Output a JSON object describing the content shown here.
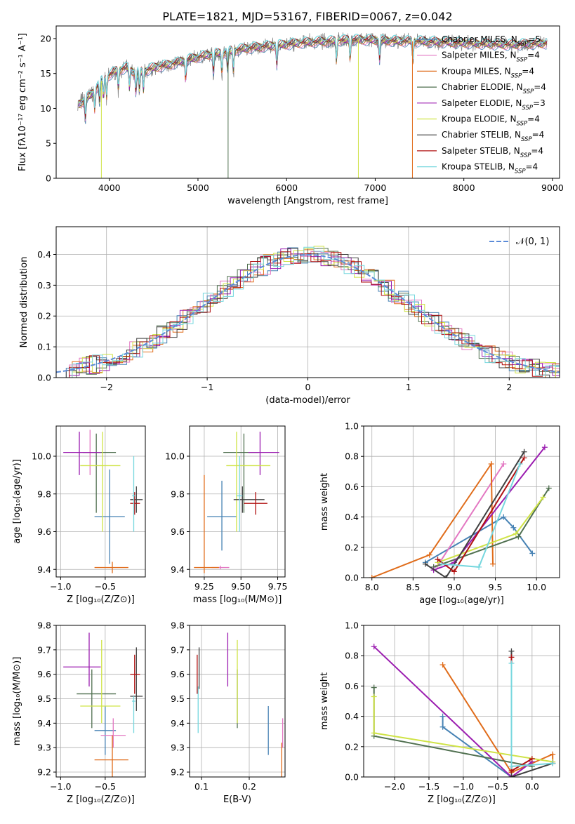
{
  "figure": {
    "title": "PLATE=1821, MJD=53167, FIBERID=0067, z=0.042"
  },
  "models": [
    {
      "name": "Chabrier MILES",
      "nssp": "5",
      "color": "#4682b4"
    },
    {
      "name": "Salpeter MILES",
      "nssp": "4",
      "color": "#e377c2"
    },
    {
      "name": "Kroupa MILES",
      "nssp": "4",
      "color": "#e06c1a"
    },
    {
      "name": "Chabrier ELODIE",
      "nssp": "4",
      "color": "#507050"
    },
    {
      "name": "Salpeter ELODIE",
      "nssp": "3",
      "color": "#9b1db0"
    },
    {
      "name": "Kroupa ELODIE",
      "nssp": "4",
      "color": "#cfe346"
    },
    {
      "name": "Chabrier STELIB",
      "nssp": "4",
      "color": "#404040"
    },
    {
      "name": "Salpeter STELIB",
      "nssp": "4",
      "color": "#b01010"
    },
    {
      "name": "Kroupa STELIB",
      "nssp": "4",
      "color": "#76d7de"
    }
  ],
  "chart_data": [
    {
      "id": "spectrum",
      "type": "line",
      "xlabel": "wavelength [Angstrom, rest frame]",
      "ylabel": "Flux [fλ10⁻¹⁷ erg cm⁻² s⁻¹ A⁻¹]",
      "xlim": [
        3400,
        9080
      ],
      "ylim": [
        0,
        21.8
      ],
      "xticks": [
        4000,
        5000,
        6000,
        7000,
        8000,
        9000
      ],
      "yticks": [
        0,
        5,
        10,
        15,
        20
      ],
      "data_color": "#808080",
      "continuum": {
        "x": [
          3650,
          3700,
          3800,
          3900,
          4000,
          4100,
          4200,
          4300,
          4500,
          4700,
          4900,
          5100,
          5300,
          5500,
          5700,
          5900,
          6100,
          6300,
          6500,
          6700,
          6900,
          7100,
          7300,
          7500,
          7700,
          7900,
          8100,
          8300,
          8500,
          8700,
          8900
        ],
        "y": [
          10.5,
          11.0,
          12.0,
          13.8,
          14.8,
          15.5,
          15.8,
          15.0,
          15.8,
          16.3,
          17.0,
          17.6,
          18.0,
          18.5,
          18.8,
          19.0,
          19.3,
          19.5,
          19.6,
          19.8,
          19.8,
          19.7,
          19.6,
          19.6,
          19.5,
          19.4,
          19.3,
          19.2,
          19.1,
          19.2,
          19.3
        ]
      },
      "absorption_lines": [
        3730,
        3835,
        3890,
        3934,
        3969,
        4102,
        4227,
        4300,
        4340,
        4384,
        4861,
        5175,
        5270,
        5335,
        5400,
        5890,
        6563,
        6717,
        7050,
        7425
      ],
      "spikes": [
        {
          "x": 5340,
          "y": 0,
          "model": "Chabrier ELODIE"
        },
        {
          "x": 6810,
          "y": 0,
          "model": "Kroupa ELODIE"
        },
        {
          "x": 7420,
          "y": 0,
          "model": "Kroupa MILES"
        },
        {
          "x": 3910,
          "y": 0,
          "model": "Kroupa ELODIE"
        }
      ]
    },
    {
      "id": "residuals",
      "type": "step",
      "xlabel": "(data-model)/error",
      "ylabel": "Normed distribution",
      "xlim": [
        -2.5,
        2.5
      ],
      "ylim": [
        0,
        0.49
      ],
      "xticks": [
        -2,
        -1,
        0,
        1,
        2
      ],
      "yticks": [
        0.0,
        0.1,
        0.2,
        0.3,
        0.4
      ],
      "gaussian_label": "𝒩(0, 1)",
      "gaussian_color": "#5b8bd8"
    },
    {
      "id": "age_vs_z",
      "type": "errorbar",
      "xlabel": "Z [log₁₀(Z/Z⊙)]",
      "ylabel": "age  [log₁₀(age/yr)]",
      "xlim": [
        -1.05,
        -0.05
      ],
      "ylim": [
        9.36,
        10.16
      ],
      "xticks": [
        -1.0,
        -0.5
      ],
      "yticks": [
        9.4,
        9.6,
        9.8,
        10.0
      ],
      "points": [
        {
          "model": "Chabrier MILES",
          "x": -0.45,
          "y": 9.68,
          "xl": -0.62,
          "xh": -0.28,
          "yl": 9.43,
          "yh": 9.93
        },
        {
          "model": "Salpeter MILES",
          "x": -0.67,
          "y": 10.02,
          "xl": -0.82,
          "xh": -0.52,
          "yl": 9.9,
          "yh": 10.14
        },
        {
          "model": "Kroupa MILES",
          "x": -0.42,
          "y": 9.41,
          "xl": -0.62,
          "xh": -0.24,
          "yl": 9.38,
          "yh": 9.44
        },
        {
          "model": "Chabrier ELODIE",
          "x": -0.6,
          "y": 10.02,
          "xl": -0.75,
          "xh": -0.38,
          "yl": 9.7,
          "yh": 10.12
        },
        {
          "model": "Salpeter ELODIE",
          "x": -0.79,
          "y": 10.02,
          "xl": -0.97,
          "xh": -0.55,
          "yl": 9.9,
          "yh": 10.13
        },
        {
          "model": "Kroupa ELODIE",
          "x": -0.53,
          "y": 9.95,
          "xl": -0.78,
          "xh": -0.33,
          "yl": 9.6,
          "yh": 10.13
        },
        {
          "model": "Chabrier STELIB",
          "x": -0.15,
          "y": 9.77,
          "xl": -0.22,
          "xh": -0.08,
          "yl": 9.7,
          "yh": 9.84
        },
        {
          "model": "Salpeter STELIB",
          "x": -0.17,
          "y": 9.75,
          "xl": -0.22,
          "xh": -0.11,
          "yl": 9.69,
          "yh": 9.81
        },
        {
          "model": "Kroupa STELIB",
          "x": -0.18,
          "y": 9.79,
          "xl": -0.2,
          "xh": -0.16,
          "yl": 9.6,
          "yh": 10.0
        }
      ]
    },
    {
      "id": "age_vs_mass",
      "type": "errorbar",
      "xlabel": "mass [log₁₀(M/M⊙)]",
      "ylabel": "",
      "xlim": [
        9.15,
        9.8
      ],
      "ylim": [
        9.36,
        10.16
      ],
      "xticks": [
        9.25,
        9.5,
        9.75
      ],
      "yticks": [
        9.4,
        9.6,
        9.8,
        10.0
      ],
      "points": [
        {
          "model": "Chabrier MILES",
          "x": 9.37,
          "y": 9.68,
          "xl": 9.27,
          "xh": 9.47,
          "yl": 9.5,
          "yh": 9.87
        },
        {
          "model": "Salpeter MILES",
          "x": 9.36,
          "y": 9.41,
          "xl": 9.3,
          "xh": 9.42,
          "yl": 9.4,
          "yh": 9.42
        },
        {
          "model": "Kroupa MILES",
          "x": 9.25,
          "y": 9.41,
          "xl": 9.18,
          "xh": 9.35,
          "yl": 9.38,
          "yh": 9.9
        },
        {
          "model": "Chabrier ELODIE",
          "x": 9.52,
          "y": 10.02,
          "xl": 9.38,
          "xh": 9.62,
          "yl": 9.7,
          "yh": 10.12
        },
        {
          "model": "Salpeter ELODIE",
          "x": 9.63,
          "y": 10.02,
          "xl": 9.55,
          "xh": 9.76,
          "yl": 9.9,
          "yh": 10.13
        },
        {
          "model": "Kroupa ELODIE",
          "x": 9.47,
          "y": 9.95,
          "xl": 9.4,
          "xh": 9.7,
          "yl": 9.6,
          "yh": 10.13
        },
        {
          "model": "Chabrier STELIB",
          "x": 9.51,
          "y": 9.77,
          "xl": 9.45,
          "xh": 9.66,
          "yl": 9.7,
          "yh": 9.84
        },
        {
          "model": "Salpeter STELIB",
          "x": 9.6,
          "y": 9.75,
          "xl": 9.52,
          "xh": 9.68,
          "yl": 9.69,
          "yh": 9.81
        },
        {
          "model": "Kroupa STELIB",
          "x": 9.49,
          "y": 9.79,
          "xl": 9.47,
          "xh": 9.51,
          "yl": 9.6,
          "yh": 10.0
        }
      ]
    },
    {
      "id": "weight_vs_age",
      "type": "line",
      "xlabel": "age  [log₁₀(age/yr)]",
      "ylabel": "mass weight",
      "xlim": [
        7.9,
        10.28
      ],
      "ylim": [
        0,
        1
      ],
      "xticks": [
        8.0,
        8.5,
        9.0,
        9.5,
        10.0
      ],
      "yticks": [
        0.0,
        0.2,
        0.4,
        0.6,
        0.8,
        1.0
      ],
      "series": [
        {
          "model": "Chabrier MILES",
          "x": [
            8.65,
            9.6,
            9.72,
            9.95
          ],
          "y": [
            0.1,
            0.4,
            0.33,
            0.16
          ]
        },
        {
          "model": "Salpeter MILES",
          "x": [
            8.8,
            9.6
          ],
          "y": [
            0.08,
            0.75
          ]
        },
        {
          "model": "Kroupa MILES",
          "x": [
            8.0,
            8.7,
            9.45,
            9.47
          ],
          "y": [
            0.0,
            0.15,
            0.75,
            0.09
          ]
        },
        {
          "model": "Chabrier ELODIE",
          "x": [
            8.75,
            9.78,
            10.15
          ],
          "y": [
            0.07,
            0.27,
            0.59
          ]
        },
        {
          "model": "Salpeter ELODIE",
          "x": [
            8.75,
            9.0,
            10.1
          ],
          "y": [
            0.05,
            0.1,
            0.86
          ]
        },
        {
          "model": "Kroupa ELODIE",
          "x": [
            8.8,
            9.75,
            10.08
          ],
          "y": [
            0.1,
            0.29,
            0.53
          ]
        },
        {
          "model": "Chabrier STELIB",
          "x": [
            8.65,
            8.9,
            9.85
          ],
          "y": [
            0.09,
            0.0,
            0.83
          ]
        },
        {
          "model": "Salpeter STELIB",
          "x": [
            8.8,
            9.0,
            9.85
          ],
          "y": [
            0.12,
            0.04,
            0.79
          ]
        },
        {
          "model": "Kroupa STELIB",
          "x": [
            8.85,
            9.3,
            9.8
          ],
          "y": [
            0.09,
            0.07,
            0.75
          ]
        }
      ]
    },
    {
      "id": "mass_vs_z",
      "type": "errorbar",
      "xlabel": "Z [log₁₀(Z/Z⊙)]",
      "ylabel": "mass [log₁₀(M/M⊙)]",
      "xlim": [
        -1.05,
        -0.05
      ],
      "ylim": [
        9.18,
        9.8
      ],
      "xticks": [
        -1.0,
        -0.5
      ],
      "yticks": [
        9.2,
        9.3,
        9.4,
        9.5,
        9.6,
        9.7,
        9.8
      ],
      "points": [
        {
          "model": "Chabrier MILES",
          "x": -0.5,
          "y": 9.37,
          "xl": -0.62,
          "xh": -0.38,
          "yl": 9.27,
          "yh": 9.47
        },
        {
          "model": "Salpeter MILES",
          "x": -0.41,
          "y": 9.35,
          "xl": -0.55,
          "xh": -0.27,
          "yl": 9.3,
          "yh": 9.42
        },
        {
          "model": "Kroupa MILES",
          "x": -0.42,
          "y": 9.25,
          "xl": -0.62,
          "xh": -0.24,
          "yl": 9.18,
          "yh": 9.35
        },
        {
          "model": "Chabrier ELODIE",
          "x": -0.65,
          "y": 9.52,
          "xl": -0.82,
          "xh": -0.38,
          "yl": 9.38,
          "yh": 9.62
        },
        {
          "model": "Salpeter ELODIE",
          "x": -0.68,
          "y": 9.63,
          "xl": -0.97,
          "xh": -0.55,
          "yl": 9.55,
          "yh": 9.77
        },
        {
          "model": "Kroupa ELODIE",
          "x": -0.54,
          "y": 9.47,
          "xl": -0.78,
          "xh": -0.33,
          "yl": 9.4,
          "yh": 9.74
        },
        {
          "model": "Chabrier STELIB",
          "x": -0.15,
          "y": 9.51,
          "xl": -0.22,
          "xh": -0.08,
          "yl": 9.45,
          "yh": 9.71
        },
        {
          "model": "Salpeter STELIB",
          "x": -0.17,
          "y": 9.6,
          "xl": -0.22,
          "xh": -0.11,
          "yl": 9.52,
          "yh": 9.68
        },
        {
          "model": "Kroupa STELIB",
          "x": -0.18,
          "y": 9.49,
          "xl": -0.2,
          "xh": -0.16,
          "yl": 9.36,
          "yh": 9.51
        }
      ]
    },
    {
      "id": "mass_vs_ebv",
      "type": "errorbar",
      "xlabel": "E(B-V)",
      "ylabel": "",
      "xlim": [
        0.075,
        0.275
      ],
      "ylim": [
        9.18,
        9.8
      ],
      "xticks": [
        0.1,
        0.2
      ],
      "yticks": [
        9.2,
        9.3,
        9.4,
        9.5,
        9.6,
        9.7,
        9.8
      ],
      "points": [
        {
          "model": "Chabrier MILES",
          "x": 0.24,
          "y": 9.37,
          "yl": 9.27,
          "yh": 9.47
        },
        {
          "model": "Salpeter MILES",
          "x": 0.27,
          "y": 9.35,
          "yl": 9.3,
          "yh": 9.42
        },
        {
          "model": "Kroupa MILES",
          "x": 0.268,
          "y": 9.25,
          "yl": 9.18,
          "yh": 9.32
        },
        {
          "model": "Chabrier ELODIE",
          "x": 0.175,
          "y": 9.52,
          "yl": 9.38,
          "yh": 9.62
        },
        {
          "model": "Salpeter ELODIE",
          "x": 0.155,
          "y": 9.63,
          "yl": 9.55,
          "yh": 9.77
        },
        {
          "model": "Kroupa ELODIE",
          "x": 0.175,
          "y": 9.5,
          "yl": 9.4,
          "yh": 9.74
        },
        {
          "model": "Chabrier STELIB",
          "x": 0.095,
          "y": 9.6,
          "yl": 9.54,
          "yh": 9.71
        },
        {
          "model": "Salpeter STELIB",
          "x": 0.091,
          "y": 9.6,
          "yl": 9.52,
          "yh": 9.68
        },
        {
          "model": "Kroupa STELIB",
          "x": 0.093,
          "y": 9.47,
          "yl": 9.36,
          "yh": 9.55
        }
      ]
    },
    {
      "id": "weight_vs_z",
      "type": "line",
      "xlabel": "Z [log₁₀(Z/Z⊙)]",
      "ylabel": "mass weight",
      "xlim": [
        -2.45,
        0.4
      ],
      "ylim": [
        0,
        1
      ],
      "xticks": [
        -2.0,
        -1.5,
        -1.0,
        -0.5,
        0.0
      ],
      "yticks": [
        0.0,
        0.2,
        0.4,
        0.6,
        0.8,
        1.0
      ],
      "series": [
        {
          "model": "Chabrier MILES",
          "x": [
            -1.3,
            -1.3,
            -0.3
          ],
          "y": [
            0.4,
            0.33,
            0.0
          ]
        },
        {
          "model": "Salpeter MILES",
          "x": [
            -0.3,
            0.0
          ],
          "y": [
            0.0,
            0.1
          ]
        },
        {
          "model": "Kroupa MILES",
          "x": [
            -1.3,
            -0.3,
            0.3,
            0.3
          ],
          "y": [
            0.74,
            0.03,
            0.15,
            0.09
          ]
        },
        {
          "model": "Chabrier ELODIE",
          "x": [
            -2.3,
            -2.3,
            0.0
          ],
          "y": [
            0.59,
            0.27,
            0.07
          ]
        },
        {
          "model": "Salpeter ELODIE",
          "x": [
            -2.3,
            -0.3,
            0.0
          ],
          "y": [
            0.86,
            0.0,
            0.1
          ]
        },
        {
          "model": "Kroupa ELODIE",
          "x": [
            -2.3,
            -2.3,
            0.3
          ],
          "y": [
            0.53,
            0.29,
            0.1
          ]
        },
        {
          "model": "Chabrier STELIB",
          "x": [
            -0.3,
            -0.3,
            0.3
          ],
          "y": [
            0.83,
            0.0,
            0.09
          ]
        },
        {
          "model": "Salpeter STELIB",
          "x": [
            -0.3,
            -0.3,
            0.0
          ],
          "y": [
            0.79,
            0.04,
            0.12
          ]
        },
        {
          "model": "Kroupa STELIB",
          "x": [
            -0.3,
            -0.3,
            0.3
          ],
          "y": [
            0.75,
            0.07,
            0.09
          ]
        }
      ]
    }
  ]
}
